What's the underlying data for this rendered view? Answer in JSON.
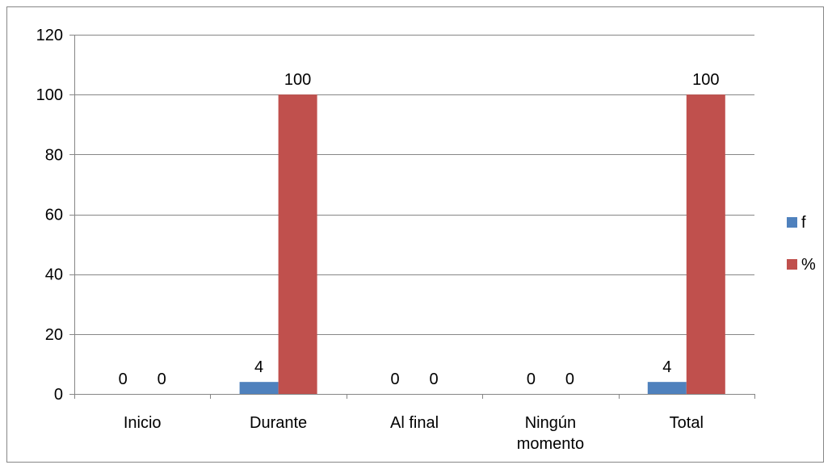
{
  "chart_data": {
    "type": "bar",
    "categories": [
      [
        "Inicio"
      ],
      [
        "Durante"
      ],
      [
        "Al final"
      ],
      [
        "Ningún",
        "momento"
      ],
      [
        "Total"
      ]
    ],
    "series": [
      {
        "name": "f",
        "values": [
          0,
          4,
          0,
          0,
          4
        ],
        "color": "#4F81BD"
      },
      {
        "name": "%",
        "values": [
          0,
          100,
          0,
          0,
          100
        ],
        "color": "#C0504D"
      }
    ],
    "ylim": [
      0,
      120
    ],
    "yticks": [
      0,
      20,
      40,
      60,
      80,
      100,
      120
    ],
    "data_labels": true,
    "grid": true,
    "legend": "right",
    "title": "",
    "xlabel": "",
    "ylabel": ""
  }
}
